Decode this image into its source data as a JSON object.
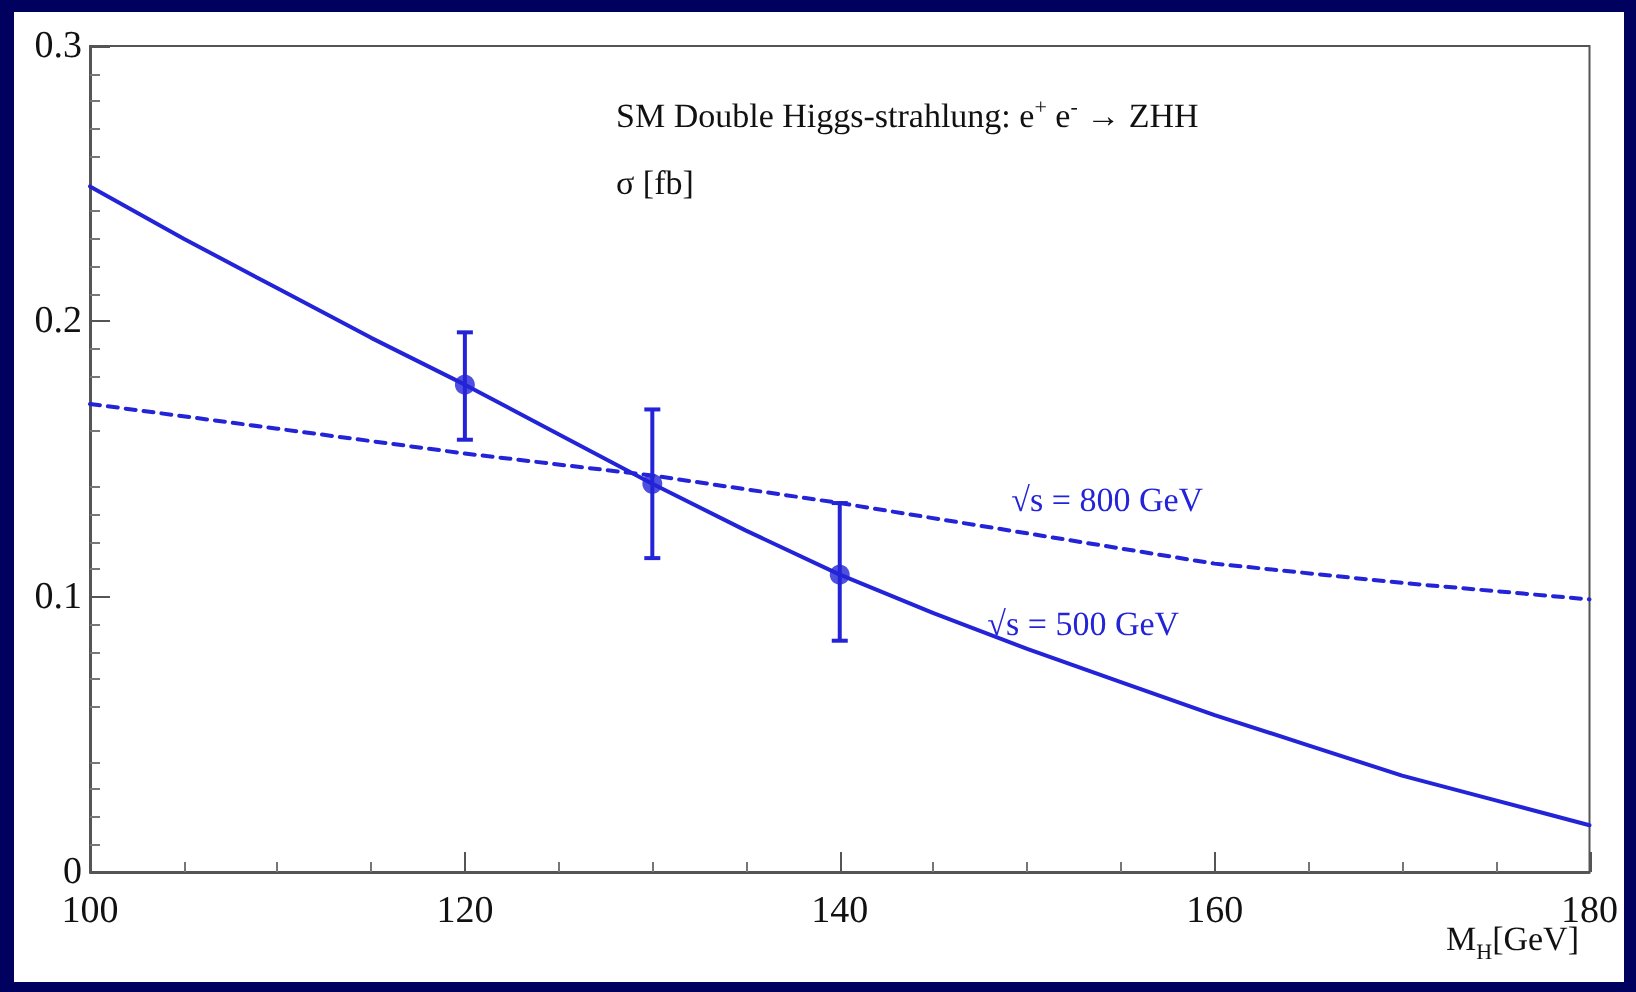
{
  "chart_data": {
    "type": "line",
    "title": "SM Double Higgs-strahlung: e$^{+}$ e$^{-}$ → ZHH",
    "ylabel": "σ [fb]",
    "xlabel": "M$_{H}$[GeV]",
    "xlim": [
      100,
      180
    ],
    "xticks": [
      100,
      120,
      140,
      160,
      180
    ],
    "ylim": [
      0,
      0.3
    ],
    "yticks": [
      0,
      0.1,
      0.2,
      0.3
    ],
    "grid": false,
    "legend": false,
    "series": [
      {
        "name": "√s = 800 GeV",
        "color": "#2323d8",
        "line_style": "dashed",
        "marker": "none",
        "x": [
          100,
          110,
          120,
          130,
          140,
          150,
          160,
          170,
          180
        ],
        "values": [
          0.17,
          0.161,
          0.152,
          0.144,
          0.134,
          0.123,
          0.112,
          0.105,
          0.099
        ]
      },
      {
        "name": "√s = 500 GeV",
        "color": "#2323d8",
        "line_style": "solid",
        "marker": "none",
        "x": [
          100,
          105,
          110,
          115,
          120,
          125,
          130,
          135,
          140,
          145,
          150,
          155,
          160,
          165,
          170,
          175,
          180
        ],
        "values": [
          0.249,
          0.23,
          0.212,
          0.194,
          0.177,
          0.159,
          0.141,
          0.124,
          0.108,
          0.094,
          0.081,
          0.069,
          0.057,
          0.046,
          0.035,
          0.026,
          0.017
        ]
      },
      {
        "type": "scatter",
        "color": "#2323d8",
        "marker": "circle",
        "x": [
          120,
          130,
          140
        ],
        "values": [
          0.177,
          0.141,
          0.108
        ],
        "errors": [
          [
            0.157,
            0.196
          ],
          [
            0.114,
            0.168
          ],
          [
            0.084,
            0.134
          ]
        ]
      }
    ]
  }
}
